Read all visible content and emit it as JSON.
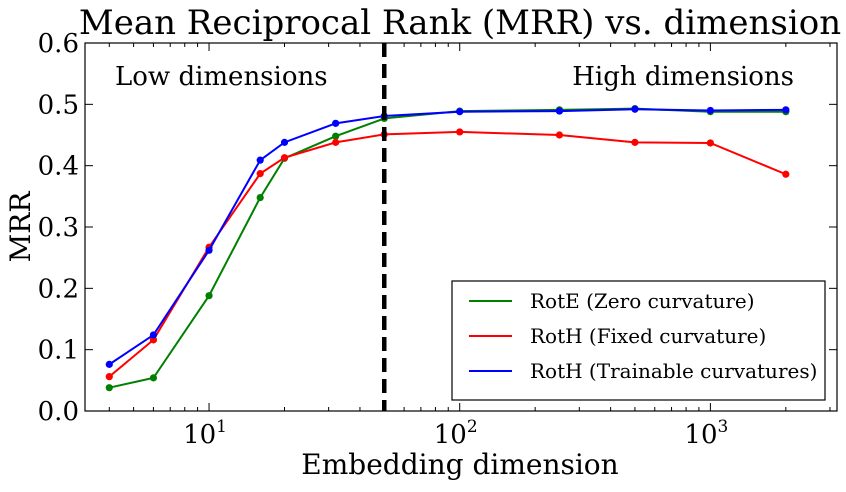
{
  "chart_data": {
    "type": "line",
    "title": "Mean Reciprocal Rank (MRR) vs. dimension",
    "xlabel": "Embedding dimension",
    "ylabel": "MRR",
    "xscale": "log",
    "xlim": [
      3.2,
      3200
    ],
    "ylim": [
      0.0,
      0.6
    ],
    "yticks": [
      "0.0",
      "0.1",
      "0.2",
      "0.3",
      "0.4",
      "0.5",
      "0.6"
    ],
    "xticks": [
      {
        "value": 10,
        "base": "10",
        "exp": "1"
      },
      {
        "value": 100,
        "base": "10",
        "exp": "2"
      },
      {
        "value": 1000,
        "base": "10",
        "exp": "3"
      }
    ],
    "grid": false,
    "legend_position": "bottom-right",
    "vline": {
      "x": 50,
      "style": "dashed",
      "color": "#000000"
    },
    "annotations": [
      {
        "text": "Low dimensions",
        "position": "top-left"
      },
      {
        "text": "High dimensions",
        "position": "top-right"
      }
    ],
    "series": [
      {
        "name": "RotE (Zero curvature)",
        "color": "#008000",
        "x": [
          4,
          6,
          10,
          16,
          20,
          32,
          50,
          100,
          250,
          500,
          1000,
          2000
        ],
        "y": [
          0.038,
          0.054,
          0.188,
          0.348,
          0.412,
          0.448,
          0.477,
          0.489,
          0.491,
          0.493,
          0.488,
          0.488
        ]
      },
      {
        "name": "RotH (Fixed curvature)",
        "color": "#ff0000",
        "x": [
          4,
          6,
          10,
          16,
          20,
          32,
          50,
          100,
          250,
          500,
          1000,
          2000
        ],
        "y": [
          0.056,
          0.116,
          0.267,
          0.387,
          0.413,
          0.438,
          0.451,
          0.455,
          0.45,
          0.438,
          0.437,
          0.386
        ]
      },
      {
        "name": "RotH (Trainable curvatures)",
        "color": "#0000ff",
        "x": [
          4,
          6,
          10,
          16,
          20,
          32,
          50,
          100,
          250,
          500,
          1000,
          2000
        ],
        "y": [
          0.076,
          0.124,
          0.262,
          0.409,
          0.438,
          0.469,
          0.481,
          0.488,
          0.489,
          0.492,
          0.49,
          0.491
        ]
      }
    ]
  }
}
